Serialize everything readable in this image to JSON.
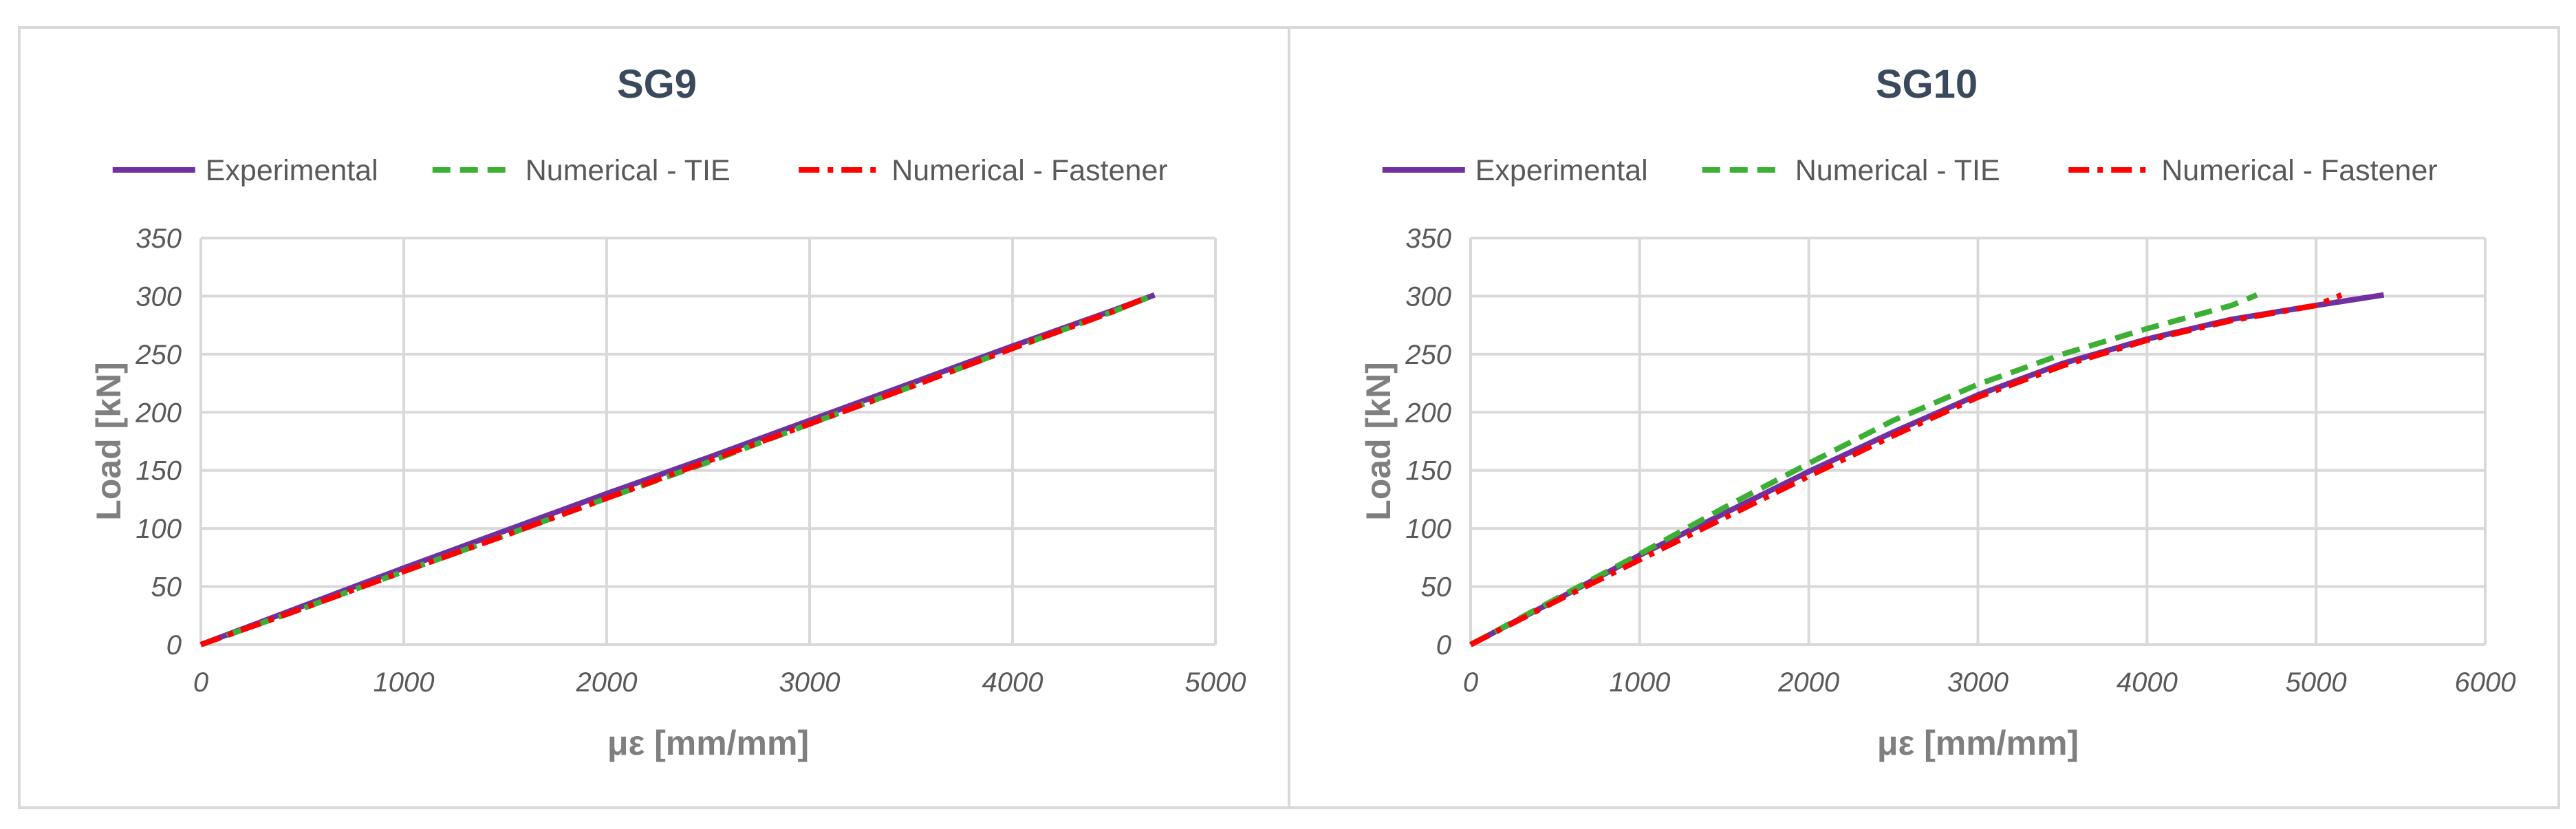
{
  "chart_data": [
    {
      "type": "line",
      "title": "SG9",
      "xlabel": "με [mm/mm]",
      "ylabel": "Load [kN]",
      "xlim": [
        0,
        5000
      ],
      "ylim": [
        0,
        350
      ],
      "xticks": [
        "0",
        "1000",
        "2000",
        "3000",
        "4000",
        "5000"
      ],
      "yticks": [
        "0",
        "50",
        "100",
        "150",
        "200",
        "250",
        "300",
        "350"
      ],
      "grid": true,
      "legend": "top",
      "series": [
        {
          "name": "Experimental",
          "color": "#7030a0",
          "style": "solid",
          "x": [
            0,
            500,
            1000,
            1500,
            2000,
            2500,
            3000,
            3500,
            4000,
            4500,
            4700
          ],
          "y": [
            0,
            33,
            66,
            98,
            130,
            161,
            193,
            225,
            257,
            288,
            301
          ]
        },
        {
          "name": "Numerical - TIE",
          "color": "#3cb034",
          "style": "dash",
          "x": [
            0,
            500,
            1000,
            1500,
            2000,
            2500,
            3000,
            3500,
            4000,
            4500,
            4700
          ],
          "y": [
            0,
            31,
            63,
            94,
            126,
            157,
            190,
            222,
            255,
            287,
            301
          ]
        },
        {
          "name": "Numerical - Fastener",
          "color": "#ff0000",
          "style": "dashdot",
          "x": [
            0,
            500,
            1000,
            1500,
            2000,
            2500,
            3000,
            3500,
            4000,
            4500,
            4650
          ],
          "y": [
            0,
            31,
            63,
            94,
            126,
            158,
            190,
            222,
            255,
            287,
            298
          ]
        }
      ]
    },
    {
      "type": "line",
      "title": "SG10",
      "xlabel": "με [mm/mm]",
      "ylabel": "Load [kN]",
      "xlim": [
        0,
        6000
      ],
      "ylim": [
        0,
        350
      ],
      "xticks": [
        "0",
        "1000",
        "2000",
        "3000",
        "4000",
        "5000",
        "6000"
      ],
      "yticks": [
        "0",
        "50",
        "100",
        "150",
        "200",
        "250",
        "300",
        "350"
      ],
      "grid": true,
      "legend": "top",
      "series": [
        {
          "name": "Experimental",
          "color": "#7030a0",
          "style": "solid",
          "x": [
            0,
            500,
            1000,
            1500,
            2000,
            2500,
            3000,
            3500,
            4000,
            4500,
            5000,
            5400
          ],
          "y": [
            0,
            38,
            77,
            113,
            149,
            183,
            215,
            242,
            263,
            280,
            292,
            301
          ]
        },
        {
          "name": "Numerical - TIE",
          "color": "#3cb034",
          "style": "dash",
          "x": [
            0,
            500,
            1000,
            1500,
            2000,
            2500,
            3000,
            3500,
            4000,
            4500,
            4650
          ],
          "y": [
            0,
            39,
            78,
            118,
            156,
            193,
            224,
            250,
            272,
            292,
            301
          ]
        },
        {
          "name": "Numerical - Fastener",
          "color": "#ff0000",
          "style": "dashdot",
          "x": [
            0,
            500,
            1000,
            1500,
            2000,
            2500,
            3000,
            3500,
            4000,
            4500,
            5000,
            5150
          ],
          "y": [
            0,
            37,
            73,
            109,
            145,
            180,
            213,
            240,
            262,
            279,
            292,
            301
          ]
        }
      ]
    }
  ]
}
